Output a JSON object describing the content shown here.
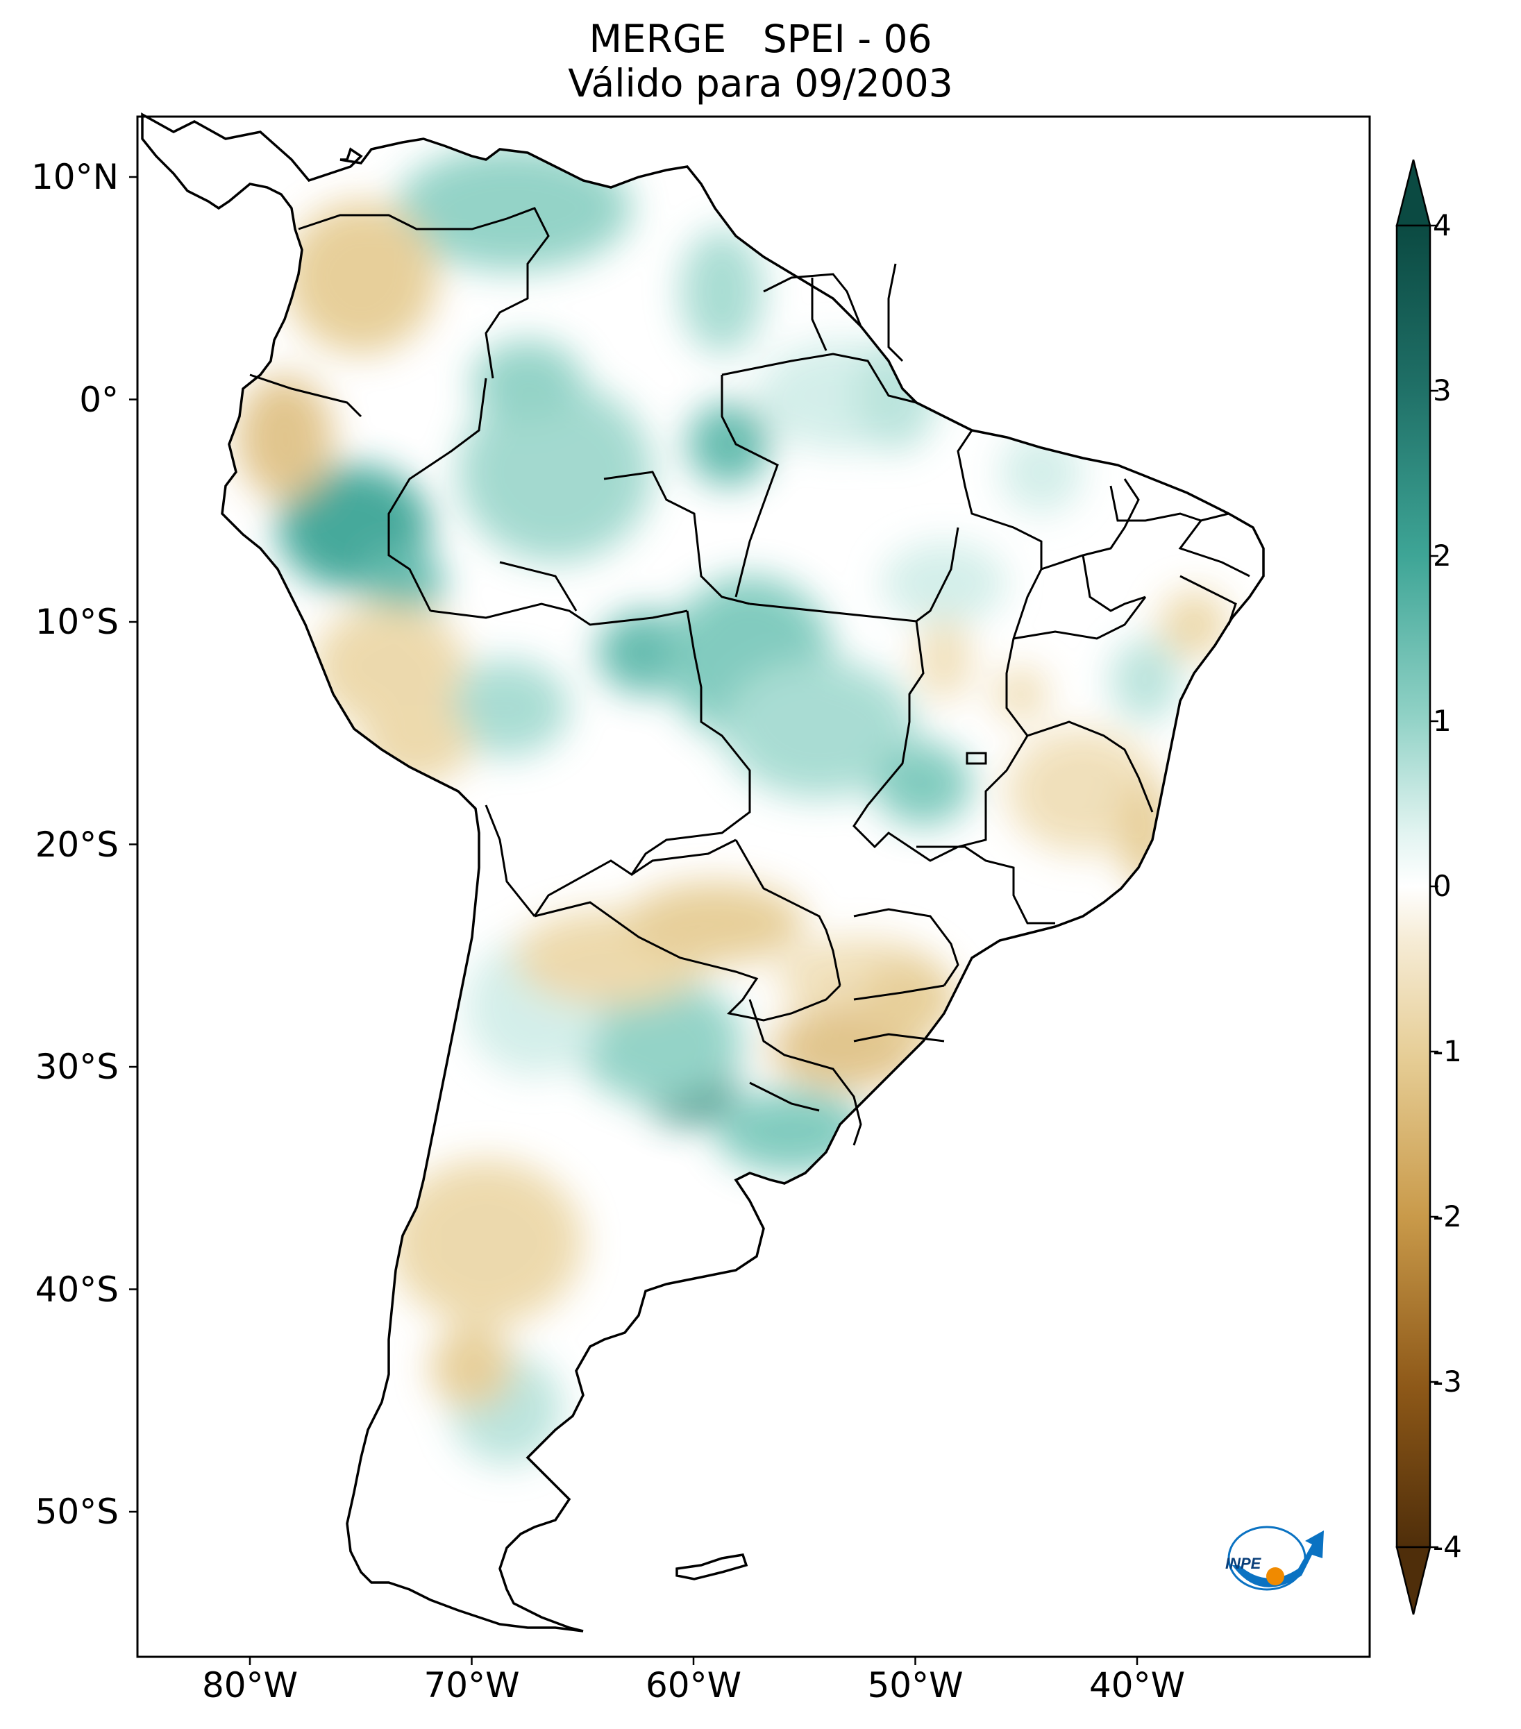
{
  "title": {
    "line1": "MERGE   SPEI - 06",
    "line2": "Válido para 09/2003"
  },
  "map": {
    "region": "South America",
    "variable": "SPEI - 06",
    "dataset": "MERGE",
    "lon_range": [
      -85,
      -30
    ],
    "lat_range": [
      -56,
      13
    ]
  },
  "axes": {
    "lat_ticks": [
      {
        "value": 10,
        "label": "10°N"
      },
      {
        "value": 0,
        "label": "0°"
      },
      {
        "value": -10,
        "label": "10°S"
      },
      {
        "value": -20,
        "label": "20°S"
      },
      {
        "value": -30,
        "label": "30°S"
      },
      {
        "value": -40,
        "label": "40°S"
      },
      {
        "value": -50,
        "label": "50°S"
      }
    ],
    "lon_ticks": [
      {
        "value": -80,
        "label": "80°W"
      },
      {
        "value": -70,
        "label": "70°W"
      },
      {
        "value": -60,
        "label": "60°W"
      },
      {
        "value": -50,
        "label": "50°W"
      },
      {
        "value": -40,
        "label": "40°W"
      }
    ]
  },
  "colorbar": {
    "min": -4,
    "max": 4,
    "ticks": [
      {
        "value": 4,
        "label": "4"
      },
      {
        "value": 3,
        "label": "3"
      },
      {
        "value": 2,
        "label": "2"
      },
      {
        "value": 1,
        "label": "1"
      },
      {
        "value": 0,
        "label": "0"
      },
      {
        "value": -1,
        "label": "-1"
      },
      {
        "value": -2,
        "label": "-2"
      },
      {
        "value": -3,
        "label": "-3"
      },
      {
        "value": -4,
        "label": "-4"
      }
    ],
    "colors": {
      "wet_max": "#0b4a42",
      "wet_high": "#2a8c7e",
      "wet_mid": "#7cc9bc",
      "wet_low": "#d2eee9",
      "neutral": "#ffffff",
      "dry_low": "#f3e6c9",
      "dry_mid": "#d9b571",
      "dry_high": "#a86f24",
      "dry_max": "#4f2e0a"
    }
  },
  "logo": {
    "text": "INPE",
    "colors": {
      "blue": "#0a72c2",
      "orange": "#f08a00"
    }
  }
}
